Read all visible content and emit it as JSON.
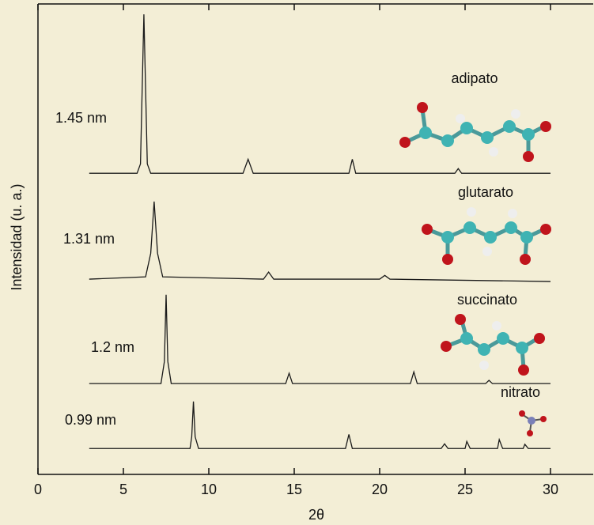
{
  "chart_data": {
    "type": "line",
    "xlabel": "2θ",
    "ylabel": "Intensidad (u. a.)",
    "xlim": [
      0,
      32.5
    ],
    "ylim": [
      0,
      100
    ],
    "xticks": [
      0,
      5,
      10,
      15,
      20,
      25,
      30
    ],
    "series": [
      {
        "name": "adipato",
        "spacing": "1.45 nm",
        "color": "#1a1a1a",
        "x": [
          3,
          5.8,
          6.0,
          6.2,
          6.4,
          6.6,
          12,
          12.3,
          12.6,
          18.2,
          18.4,
          18.6,
          24.4,
          24.6,
          24.8,
          30
        ],
        "values": [
          64,
          64,
          66,
          97.8,
          66,
          64,
          64,
          67,
          64,
          64,
          67,
          64,
          64,
          65,
          64,
          64
        ]
      },
      {
        "name": "glutarato",
        "spacing": "1.31 nm",
        "color": "#1a1a1a",
        "x": [
          3,
          6.3,
          6.6,
          6.8,
          7.0,
          7.3,
          13.2,
          13.5,
          13.8,
          20,
          20.3,
          20.6,
          30
        ],
        "values": [
          41.5,
          42,
          47,
          58,
          47,
          42,
          41.5,
          43,
          41.5,
          41.5,
          42.3,
          41.5,
          41
        ]
      },
      {
        "name": "succinato",
        "spacing": "1.2 nm",
        "color": "#1a1a1a",
        "x": [
          3,
          7.2,
          7.4,
          7.5,
          7.6,
          7.8,
          14.5,
          14.7,
          14.9,
          21.8,
          22,
          22.2,
          26.2,
          26.4,
          26.6,
          30
        ],
        "values": [
          19.3,
          19.3,
          24,
          38.2,
          24,
          19.3,
          19.3,
          21.5,
          19.3,
          19.3,
          21.8,
          19.3,
          19.3,
          20,
          19.3,
          19.3
        ]
      },
      {
        "name": "nitrato",
        "spacing": "0.99 nm",
        "color": "#1a1a1a",
        "x": [
          3,
          8.9,
          9.0,
          9.1,
          9.2,
          9.4,
          18.0,
          18.2,
          18.4,
          23.6,
          23.8,
          24,
          25,
          25.1,
          25.3,
          26.9,
          27,
          27.2,
          28.4,
          28.5,
          28.7,
          30
        ],
        "values": [
          5.5,
          5.5,
          8,
          15.5,
          8,
          5.5,
          5.5,
          8.5,
          5.5,
          5.5,
          6.5,
          5.5,
          5.5,
          7,
          5.5,
          5.5,
          7.4,
          5.5,
          5.5,
          6.4,
          5.5,
          5.5
        ]
      }
    ]
  }
}
